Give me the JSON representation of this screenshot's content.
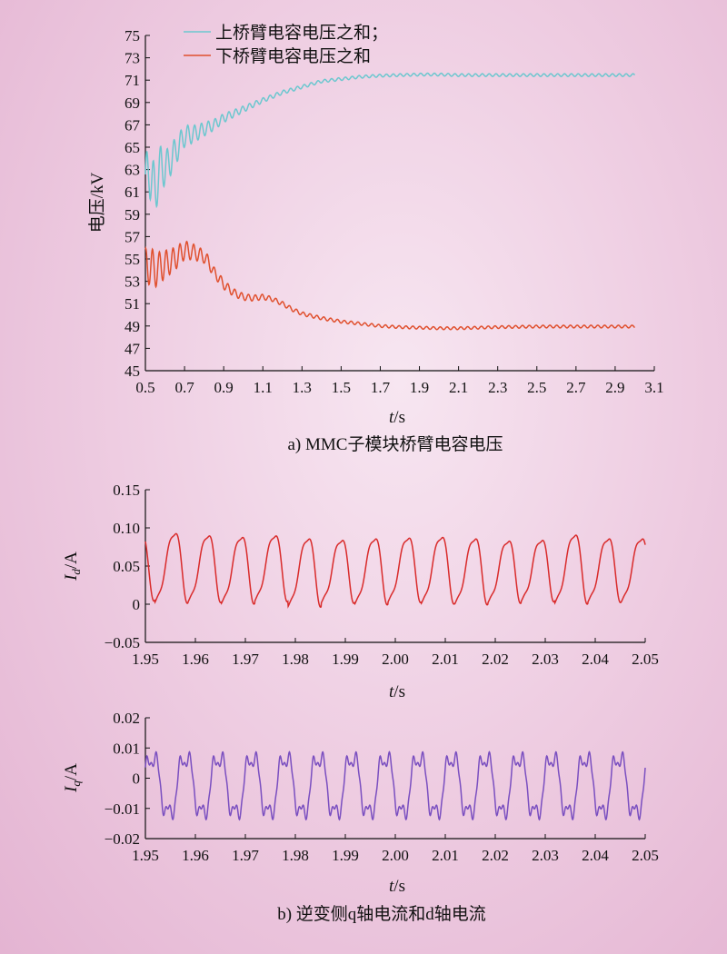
{
  "figure": {
    "caption_a": "a) MMC子模块桥臂电容电压",
    "caption_b": "b) 逆变侧q轴电流和d轴电流"
  },
  "chart_data": [
    {
      "id": "voltage",
      "type": "line",
      "title": "",
      "xlabel": "t/s",
      "ylabel": "电压/kV",
      "xlim": [
        0.5,
        3.1
      ],
      "ylim": [
        45,
        75
      ],
      "xticks": [
        0.5,
        0.7,
        0.9,
        1.1,
        1.3,
        1.5,
        1.7,
        1.9,
        2.1,
        2.3,
        2.5,
        2.7,
        2.9,
        3.1
      ],
      "xtick_labels": [
        "0.5",
        "0.7",
        "0.9",
        "1.1",
        "1.3",
        "1.5",
        "1.7",
        "1.9",
        "2.1",
        "2.3",
        "2.5",
        "2.7",
        "2.9",
        "3.1"
      ],
      "yticks": [
        45,
        47,
        49,
        51,
        53,
        55,
        57,
        59,
        61,
        63,
        65,
        67,
        69,
        71,
        73,
        75
      ],
      "ytick_labels": [
        "45",
        "47",
        "49",
        "51",
        "53",
        "55",
        "57",
        "59",
        "61",
        "63",
        "65",
        "67",
        "69",
        "71",
        "73",
        "75"
      ],
      "legend": "top-left",
      "grid": false,
      "series": [
        {
          "name": "上桥臂电容电压之和；",
          "color": "#6cc7cf",
          "x": [
            0.5,
            0.52,
            0.55,
            0.58,
            0.6,
            0.65,
            0.7,
            0.75,
            0.8,
            0.85,
            0.9,
            1.0,
            1.1,
            1.2,
            1.3,
            1.4,
            1.5,
            1.6,
            1.7,
            1.8,
            1.9,
            2.0,
            2.1,
            2.2,
            2.4,
            2.6,
            2.8,
            3.0
          ],
          "y": [
            61.5,
            63,
            61,
            63.5,
            63,
            64.5,
            66,
            66.2,
            66.6,
            67,
            67.6,
            68.4,
            69.2,
            69.9,
            70.4,
            70.9,
            71.1,
            71.3,
            71.4,
            71.45,
            71.5,
            71.5,
            71.45,
            71.45,
            71.45,
            71.45,
            71.45,
            71.45
          ],
          "oscillation": {
            "amplitude": 2.6,
            "decay_time": 0.18,
            "period": 0.035
          }
        },
        {
          "name": "下桥臂电容电压之和",
          "color": "#e0502e",
          "x": [
            0.5,
            0.52,
            0.55,
            0.6,
            0.65,
            0.7,
            0.75,
            0.8,
            0.82,
            0.85,
            0.88,
            0.9,
            0.95,
            1.0,
            1.05,
            1.1,
            1.15,
            1.2,
            1.25,
            1.3,
            1.4,
            1.5,
            1.6,
            1.7,
            1.8,
            1.9,
            2.0,
            2.1,
            2.2,
            2.3,
            2.5,
            2.7,
            2.9,
            3.0
          ],
          "y": [
            54,
            54.5,
            54,
            54.5,
            55,
            55.8,
            55.6,
            55.2,
            54.8,
            53.8,
            53.2,
            52.7,
            52,
            51.6,
            51.5,
            51.6,
            51.4,
            51,
            50.5,
            50.1,
            49.7,
            49.4,
            49.2,
            49,
            48.9,
            48.85,
            48.8,
            48.8,
            48.85,
            48.9,
            48.95,
            48.95,
            48.95,
            48.95
          ],
          "oscillation": {
            "amplitude": 1.8,
            "decay_time": 0.22,
            "period": 0.035
          }
        }
      ]
    },
    {
      "id": "Id",
      "type": "line",
      "xlabel": "t/s",
      "ylabel_main": "I",
      "ylabel_sub": "d",
      "ylabel_unit": "/A",
      "xlim": [
        1.95,
        2.05
      ],
      "ylim": [
        -0.05,
        0.15
      ],
      "xticks": [
        1.95,
        1.96,
        1.97,
        1.98,
        1.99,
        2.0,
        2.01,
        2.02,
        2.03,
        2.04,
        2.05
      ],
      "xtick_labels": [
        "1.95",
        "1.96",
        "1.97",
        "1.98",
        "1.99",
        "2.00",
        "2.01",
        "2.02",
        "2.03",
        "2.04",
        "2.05"
      ],
      "yticks": [
        -0.05,
        0,
        0.05,
        0.1,
        0.15
      ],
      "ytick_labels": [
        "−0.05",
        "0",
        "0.05",
        "0.10",
        "0.15"
      ],
      "grid": false,
      "series": [
        {
          "name": "",
          "color": "#d92b2b",
          "period": 0.006667,
          "peaks": [
            0.093,
            0.095,
            0.092,
            0.09,
            0.092,
            0.088,
            0.086,
            0.088,
            0.089,
            0.09,
            0.088,
            0.085,
            0.086,
            0.093,
            0.088
          ],
          "troughs": [
            0.005,
            0.002,
            0.003,
            0.001,
            0.004,
            -0.003,
            0.002,
            0.0,
            0.003,
            0.001,
            0.0,
            0.002,
            0.004,
            0.001,
            0.003
          ]
        }
      ]
    },
    {
      "id": "Iq",
      "type": "line",
      "xlabel": "t/s",
      "ylabel_main": "I",
      "ylabel_sub": "q",
      "ylabel_unit": "/A",
      "xlim": [
        1.95,
        2.05
      ],
      "ylim": [
        -0.02,
        0.02
      ],
      "xticks": [
        1.95,
        1.96,
        1.97,
        1.98,
        1.99,
        2.0,
        2.01,
        2.02,
        2.03,
        2.04,
        2.05
      ],
      "xtick_labels": [
        "1.95",
        "1.96",
        "1.97",
        "1.98",
        "1.99",
        "2.00",
        "2.01",
        "2.02",
        "2.03",
        "2.04",
        "2.05"
      ],
      "yticks": [
        -0.02,
        -0.01,
        0,
        0.01,
        0.02
      ],
      "ytick_labels": [
        "−0.02",
        "−0.01",
        "0",
        "0.01",
        "0.02"
      ],
      "grid": false,
      "series": [
        {
          "name": "",
          "color": "#7a4fc0",
          "period": 0.006667,
          "mean": -0.0025,
          "amplitude": 0.0105,
          "harmonic": 0.0035
        }
      ]
    }
  ]
}
